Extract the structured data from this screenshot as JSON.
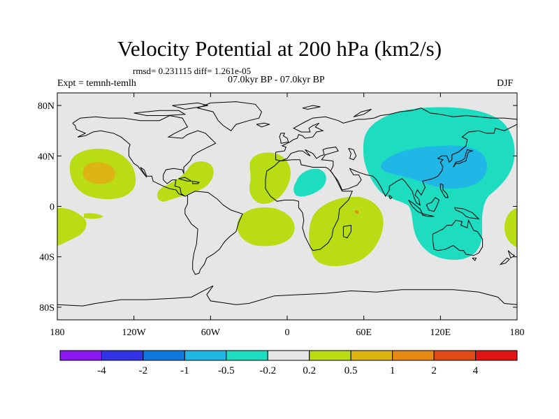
{
  "title": "Velocity Potential at 200 hPa (km2/s)",
  "stats": "rmsd= 0.231115 diff= 1.261e-05",
  "period": "07.0kyr BP - 07.0kyr BP",
  "experiment": "Expt = temnh-temlh",
  "season": "DJF",
  "map": {
    "lon_range": [
      -180,
      180
    ],
    "lat_range": [
      -90,
      90
    ],
    "lat_ticks": [
      {
        "value": 80,
        "label": "80N"
      },
      {
        "value": 40,
        "label": "40N"
      },
      {
        "value": 0,
        "label": "0"
      },
      {
        "value": -40,
        "label": "40S"
      },
      {
        "value": -80,
        "label": "80S"
      }
    ],
    "lon_ticks": [
      {
        "value": -180,
        "label": "180"
      },
      {
        "value": -120,
        "label": "120W"
      },
      {
        "value": -60,
        "label": "60W"
      },
      {
        "value": 0,
        "label": "0"
      },
      {
        "value": 60,
        "label": "60E"
      },
      {
        "value": 120,
        "label": "120E"
      },
      {
        "value": 180,
        "label": "180"
      }
    ],
    "background_color": "#e6e6e6"
  },
  "colorbar": {
    "colors": [
      "#8a18f0",
      "#3333e6",
      "#0f78dc",
      "#20b6e6",
      "#1ddcc0",
      "#e6e6e6",
      "#b9dc14",
      "#dcb414",
      "#e68a14",
      "#e04a14",
      "#e01414"
    ],
    "labels": [
      "-4",
      "-2",
      "-1",
      "-0.5",
      "-0.2",
      "0.2",
      "0.5",
      "1",
      "2",
      "4"
    ]
  },
  "colors": {
    "neg_0_5": "#20b6e6",
    "neg_0_2": "#1ddcc0",
    "pos_0_2": "#b9dc14",
    "pos_0_5": "#dcb414",
    "pos_1": "#e68a14"
  }
}
